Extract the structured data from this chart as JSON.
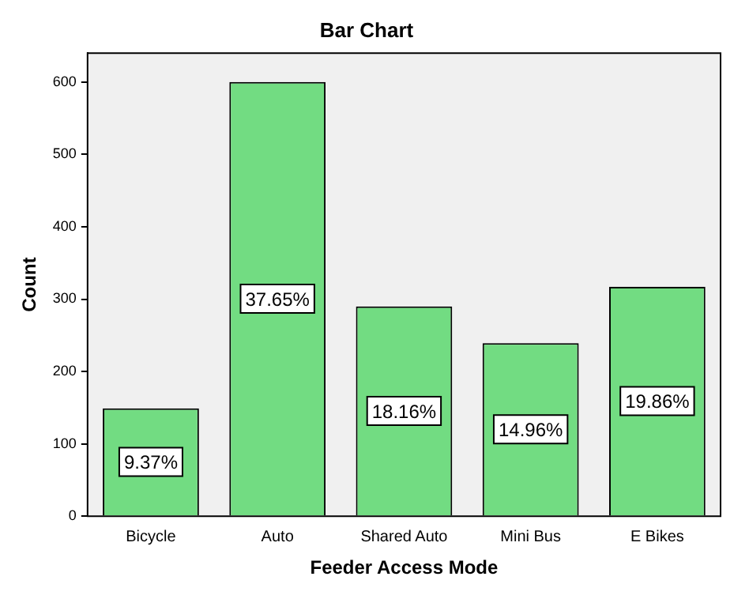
{
  "chart_data": {
    "type": "bar",
    "title": "Bar Chart",
    "xlabel": "Feeder Access Mode",
    "ylabel": "Count",
    "categories": [
      "Bicycle",
      "Auto",
      "Shared Auto",
      "Mini Bus",
      "E Bikes"
    ],
    "values": [
      149,
      600,
      290,
      239,
      317
    ],
    "annotations": [
      "9.37%",
      "37.65%",
      "18.16%",
      "14.96%",
      "19.86%"
    ],
    "color": "#72dc82",
    "ylim": [
      0,
      640
    ],
    "yticks": [
      0,
      100,
      200,
      300,
      400,
      500,
      600
    ],
    "grid": false,
    "legend": false
  }
}
